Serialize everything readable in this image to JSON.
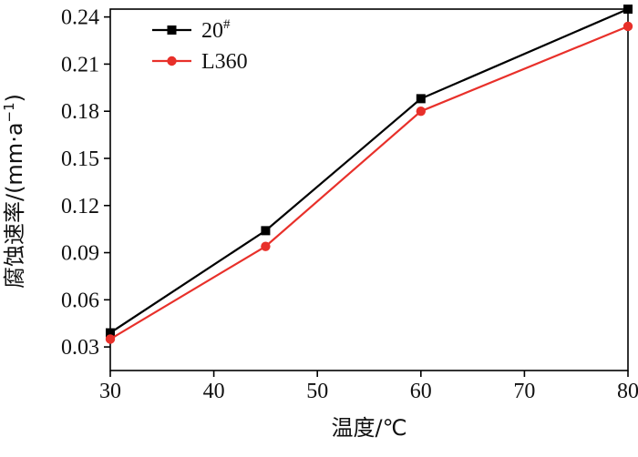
{
  "chart_data": {
    "type": "line",
    "xlabel": "温度/℃",
    "ylabel_main": "腐蚀速率/(mm·a",
    "ylabel_sup": "−1",
    "ylabel_close": ")",
    "xlim": [
      30,
      80
    ],
    "ylim": [
      0.015,
      0.245
    ],
    "xticks": [
      30,
      40,
      50,
      60,
      70,
      80
    ],
    "yticks": [
      "0.03",
      "0.06",
      "0.09",
      "0.12",
      "0.15",
      "0.18",
      "0.21",
      "0.24"
    ],
    "grid": false,
    "legend_position": "top-left",
    "series": [
      {
        "name_main": "20",
        "name_sup": "#",
        "color": "#000000",
        "marker": "square",
        "x": [
          30,
          45,
          60,
          80
        ],
        "y": [
          0.039,
          0.104,
          0.188,
          0.245
        ]
      },
      {
        "name_main": "L360",
        "name_sup": "",
        "color": "#e8302a",
        "marker": "circle",
        "x": [
          30,
          45,
          60,
          80
        ],
        "y": [
          0.035,
          0.094,
          0.18,
          0.234
        ]
      }
    ]
  }
}
